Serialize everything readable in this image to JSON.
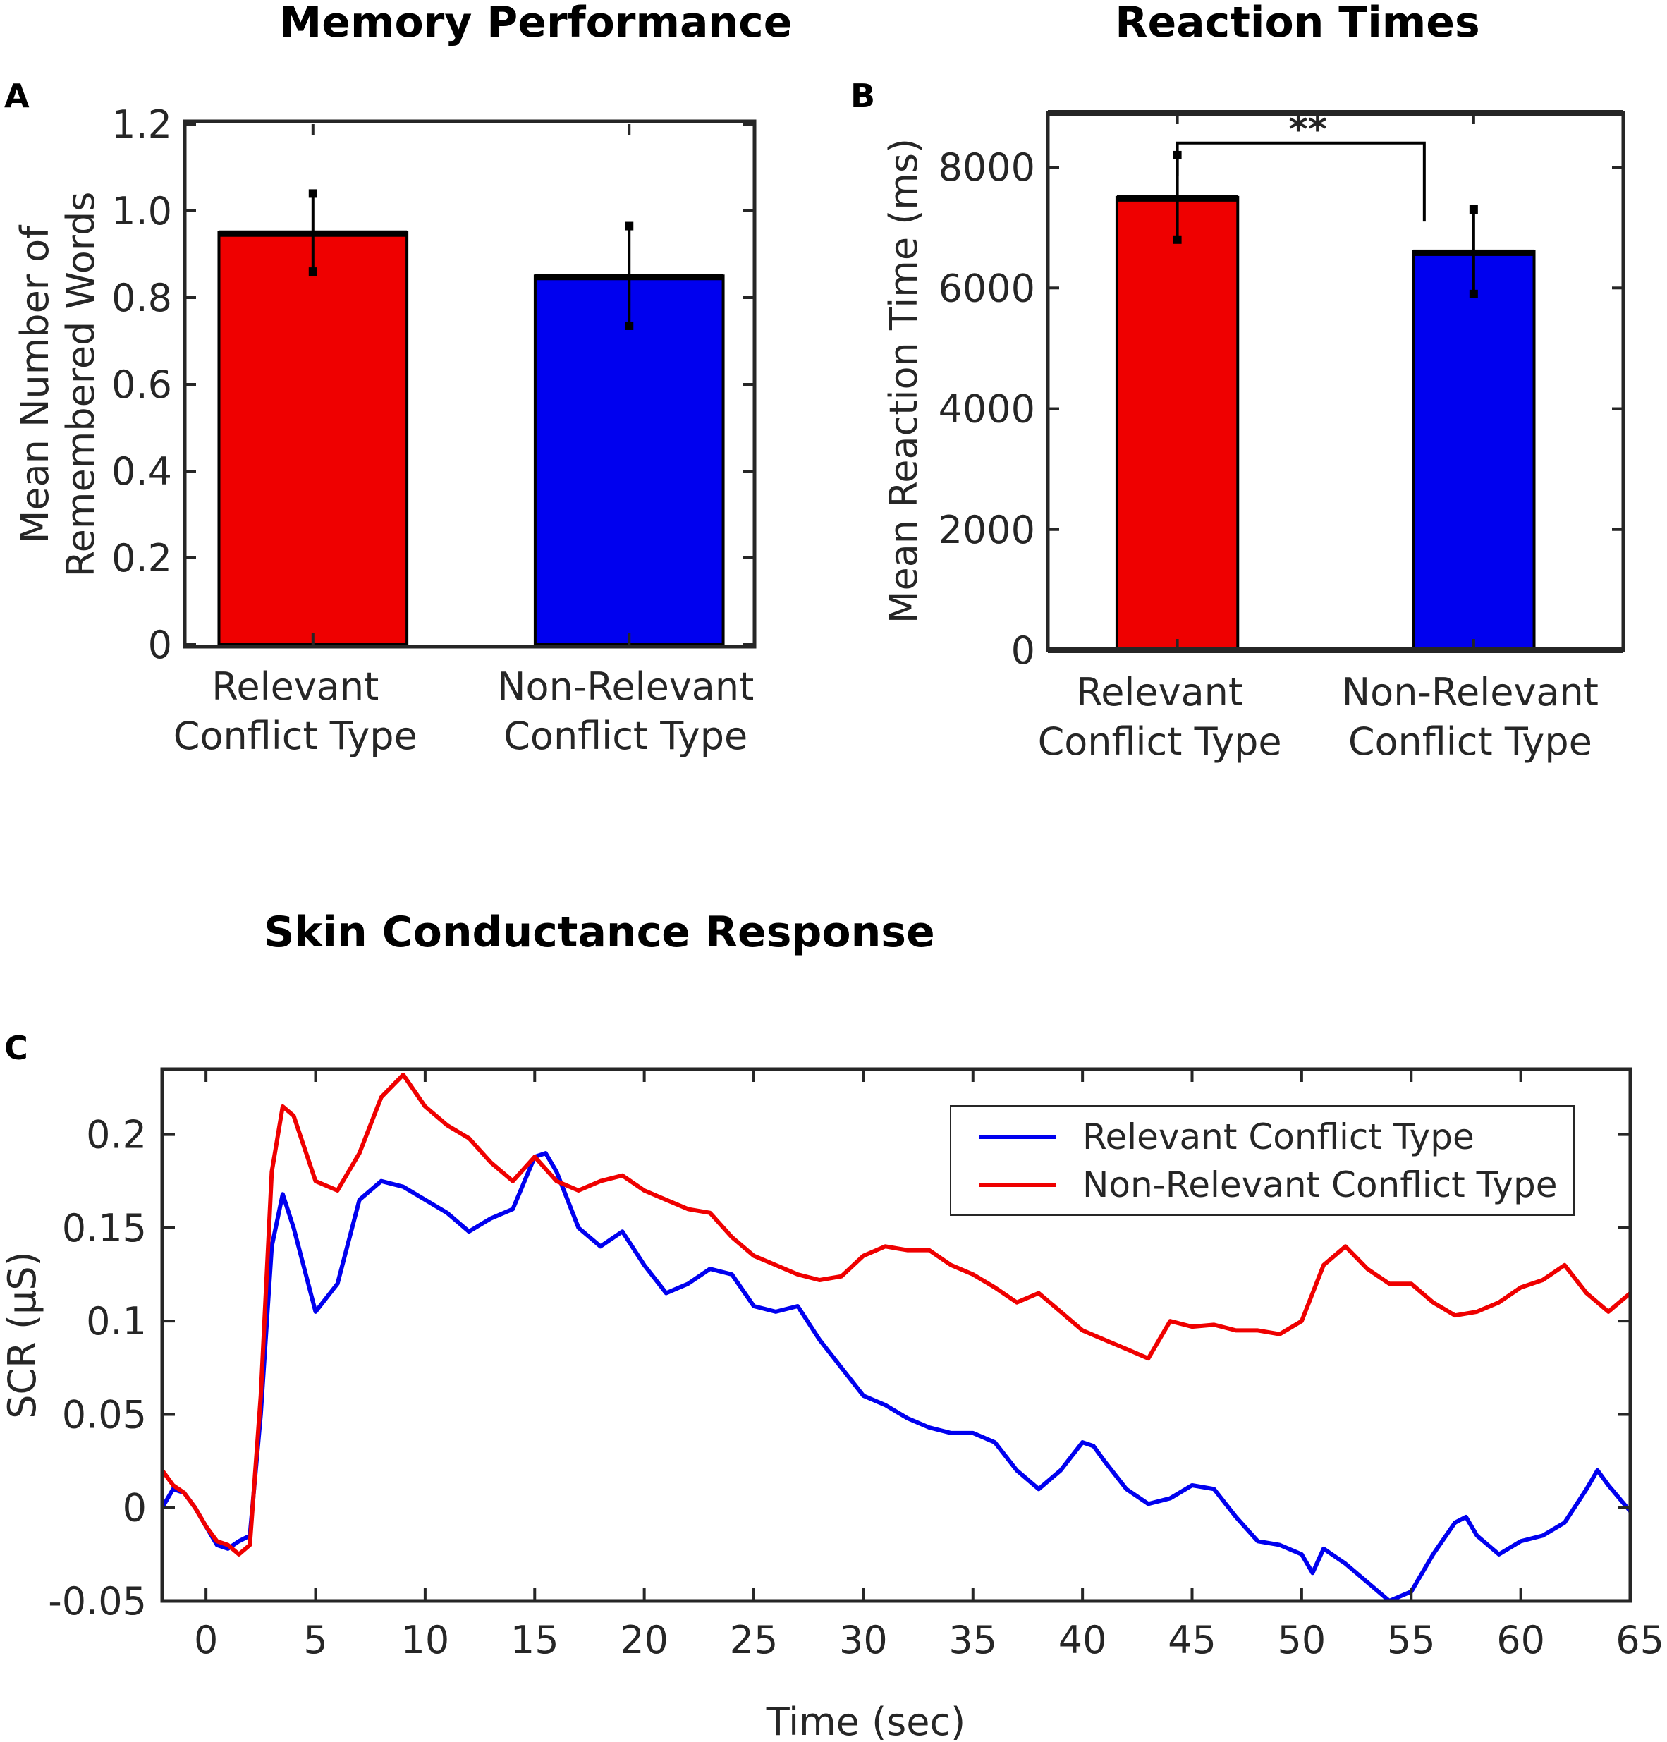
{
  "chart_data": [
    {
      "panel": "A",
      "type": "bar",
      "title": "Memory Performance",
      "ylabel_lines": [
        "Mean Number of",
        "Remembered Words"
      ],
      "categories": [
        [
          "Relevant",
          "Conflict Type"
        ],
        [
          "Non-Relevant",
          "Conflict Type"
        ]
      ],
      "values": [
        0.95,
        0.85
      ],
      "errors": [
        0.09,
        0.115
      ],
      "bar_colors": [
        "#ef0000",
        "#0000ef"
      ],
      "ylim": [
        0,
        1.2
      ],
      "yticks": [
        0,
        0.2,
        0.4,
        0.6,
        0.8,
        1.0,
        1.2
      ],
      "ytick_labels": [
        "0",
        "0.2",
        "0.4",
        "0.6",
        "0.8",
        "1.0",
        "1.2"
      ]
    },
    {
      "panel": "B",
      "type": "bar",
      "title": "Reaction Times",
      "ylabel": "Mean Reaction Time (ms)",
      "categories": [
        [
          "Relevant",
          "Conflict Type"
        ],
        [
          "Non-Relevant",
          "Conflict Type"
        ]
      ],
      "values": [
        7500,
        6600
      ],
      "errors": [
        700,
        700
      ],
      "bar_colors": [
        "#ef0000",
        "#0000ef"
      ],
      "ylim": [
        0,
        8900
      ],
      "yticks": [
        0,
        2000,
        4000,
        6000,
        8000
      ],
      "ytick_labels": [
        "0",
        "2000",
        "4000",
        "6000",
        "8000"
      ],
      "significance": {
        "label": "**",
        "bracket_top": 8400,
        "left_end": 7850,
        "right_end": 7100
      }
    },
    {
      "panel": "C",
      "type": "line",
      "title": "Skin Conductance Response",
      "xlabel": "Time (sec)",
      "ylabel": "SCR (µS)",
      "xlim": [
        -2,
        65
      ],
      "ylim": [
        -0.05,
        0.235
      ],
      "xticks": [
        0,
        5,
        10,
        15,
        20,
        25,
        30,
        35,
        40,
        45,
        50,
        55,
        60,
        65
      ],
      "yticks": [
        -0.05,
        0,
        0.05,
        0.1,
        0.15,
        0.2
      ],
      "ytick_labels": [
        "-0.05",
        "0",
        "0.05",
        "0.1",
        "0.15",
        "0.2"
      ],
      "legend_position": "top-right",
      "series": [
        {
          "name": "Relevant Conflict Type",
          "color": "#0000ef",
          "x": [
            -2,
            -1.5,
            -1,
            -0.5,
            0,
            0.5,
            1,
            1.5,
            2,
            2.5,
            3,
            3.5,
            4,
            5,
            6,
            7,
            8,
            9,
            10,
            11,
            12,
            13,
            14,
            15,
            15.5,
            16,
            17,
            18,
            19,
            20,
            21,
            22,
            23,
            24,
            25,
            26,
            27,
            28,
            29,
            30,
            31,
            32,
            33,
            34,
            35,
            36,
            37,
            38,
            39,
            40,
            40.5,
            41,
            42,
            43,
            44,
            45,
            46,
            47,
            48,
            49,
            50,
            50.5,
            51,
            52,
            53,
            54,
            55,
            56,
            57,
            57.5,
            58,
            59,
            60,
            61,
            62,
            63,
            63.5,
            64,
            65
          ],
          "y": [
            0.0,
            0.01,
            0.008,
            0.0,
            -0.01,
            -0.02,
            -0.022,
            -0.018,
            -0.015,
            0.05,
            0.14,
            0.168,
            0.15,
            0.105,
            0.12,
            0.165,
            0.175,
            0.172,
            0.165,
            0.158,
            0.148,
            0.155,
            0.16,
            0.188,
            0.19,
            0.18,
            0.15,
            0.14,
            0.148,
            0.13,
            0.115,
            0.12,
            0.128,
            0.125,
            0.108,
            0.105,
            0.108,
            0.09,
            0.075,
            0.06,
            0.055,
            0.048,
            0.043,
            0.04,
            0.04,
            0.035,
            0.02,
            0.01,
            0.02,
            0.035,
            0.033,
            0.025,
            0.01,
            0.002,
            0.005,
            0.012,
            0.01,
            -0.005,
            -0.018,
            -0.02,
            -0.025,
            -0.035,
            -0.022,
            -0.03,
            -0.04,
            -0.05,
            -0.045,
            -0.025,
            -0.008,
            -0.005,
            -0.015,
            -0.025,
            -0.018,
            -0.015,
            -0.008,
            0.01,
            0.02,
            0.012,
            -0.002
          ]
        },
        {
          "name": "Non-Relevant Conflict Type",
          "color": "#ef0000",
          "x": [
            -2,
            -1.5,
            -1,
            -0.5,
            0,
            0.5,
            1,
            1.5,
            2,
            2.5,
            3,
            3.5,
            4,
            5,
            6,
            7,
            8,
            9,
            10,
            11,
            12,
            13,
            14,
            15,
            16,
            17,
            18,
            19,
            20,
            21,
            22,
            23,
            24,
            25,
            26,
            27,
            28,
            29,
            30,
            31,
            32,
            33,
            34,
            35,
            36,
            37,
            38,
            39,
            40,
            41,
            42,
            43,
            44,
            45,
            46,
            47,
            48,
            49,
            50,
            51,
            52,
            53,
            54,
            55,
            56,
            57,
            58,
            59,
            60,
            61,
            62,
            63,
            64,
            65
          ],
          "y": [
            0.02,
            0.012,
            0.008,
            0.0,
            -0.01,
            -0.018,
            -0.02,
            -0.025,
            -0.02,
            0.06,
            0.18,
            0.215,
            0.21,
            0.175,
            0.17,
            0.19,
            0.22,
            0.232,
            0.215,
            0.205,
            0.198,
            0.185,
            0.175,
            0.188,
            0.175,
            0.17,
            0.175,
            0.178,
            0.17,
            0.165,
            0.16,
            0.158,
            0.145,
            0.135,
            0.13,
            0.125,
            0.122,
            0.124,
            0.135,
            0.14,
            0.138,
            0.138,
            0.13,
            0.125,
            0.118,
            0.11,
            0.115,
            0.105,
            0.095,
            0.09,
            0.085,
            0.08,
            0.1,
            0.097,
            0.098,
            0.095,
            0.095,
            0.093,
            0.1,
            0.13,
            0.14,
            0.128,
            0.12,
            0.12,
            0.11,
            0.103,
            0.105,
            0.11,
            0.118,
            0.122,
            0.13,
            0.115,
            0.105,
            0.115
          ]
        }
      ]
    }
  ]
}
